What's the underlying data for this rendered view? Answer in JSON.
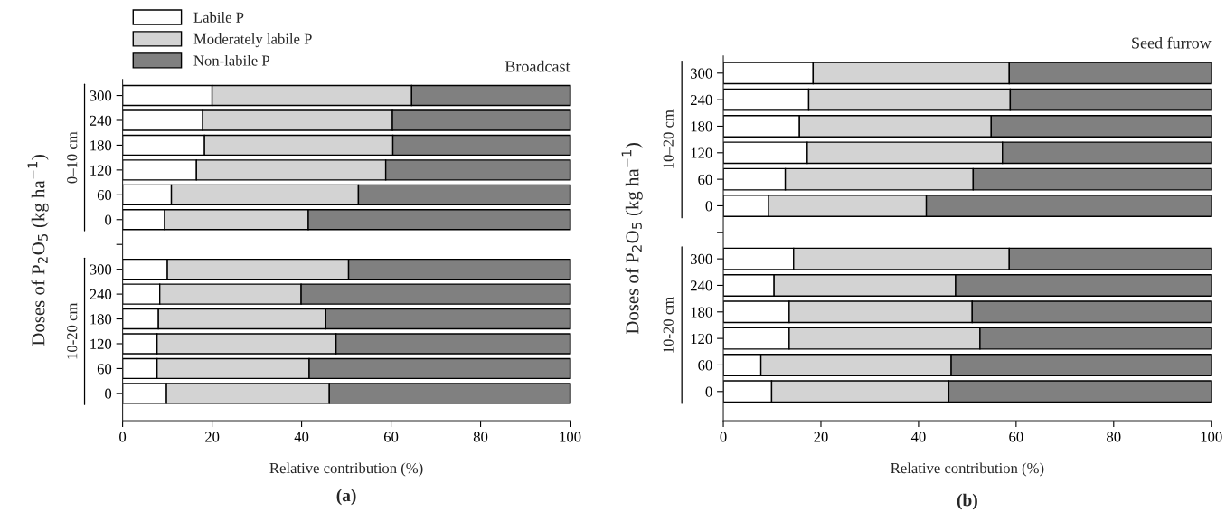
{
  "chart_data": [
    {
      "type": "bar",
      "orientation": "horizontal",
      "stacked": true,
      "title": "Broadcast",
      "xlabel": "Relative contribution (%)",
      "ylabel": "Doses of P$_{2}$O$_{5}$ (kg ha$^{−1}$)",
      "categories": [
        "300",
        "240",
        "180",
        "120",
        "60",
        "0",
        null,
        "300",
        "240",
        "180",
        "120",
        "60",
        "0"
      ],
      "series": [
        {
          "name": "Labile P",
          "color": "#ffffff",
          "values": [
            20.0,
            17.9,
            18.3,
            16.5,
            10.9,
            9.4,
            null,
            10.0,
            8.3,
            8.0,
            7.7,
            7.7,
            9.8
          ]
        },
        {
          "name": "Moderately labile P",
          "color": "#d3d3d3",
          "values": [
            44.6,
            42.4,
            42.1,
            42.3,
            41.8,
            32.1,
            null,
            40.5,
            31.6,
            37.4,
            40.0,
            34.0,
            36.4
          ]
        },
        {
          "name": "Non-labile P",
          "color": "#808080",
          "values": [
            35.4,
            39.7,
            39.6,
            41.2,
            47.3,
            58.5,
            null,
            49.5,
            60.1,
            54.6,
            52.3,
            58.3,
            53.8
          ]
        }
      ],
      "xlim": [
        0,
        100
      ],
      "xticks": [
        0,
        20,
        40,
        60,
        80,
        100
      ],
      "grid": false,
      "legend": "top left",
      "annotations": [
        "0–10 cm",
        "10-20 cm",
        "(a)"
      ]
    },
    {
      "type": "bar",
      "orientation": "horizontal",
      "stacked": true,
      "title": "Seed furrow",
      "xlabel": "Relative contribution (%)",
      "ylabel": "Doses of P$_{2}$O$_{5}$ (kg ha$^{−1}$)",
      "categories": [
        "300",
        "240",
        "180",
        "120",
        "60",
        "0",
        null,
        "300",
        "240",
        "180",
        "120",
        "60",
        "0"
      ],
      "series": [
        {
          "color": "#ffffff",
          "values": [
            18.4,
            17.5,
            15.6,
            17.2,
            12.7,
            9.3,
            null,
            14.4,
            10.4,
            13.5,
            13.5,
            7.7,
            9.9
          ]
        },
        {
          "color": "#d3d3d3",
          "values": [
            40.2,
            41.3,
            39.3,
            40.0,
            38.5,
            32.3,
            null,
            44.2,
            37.2,
            37.5,
            39.1,
            39.0,
            36.3
          ]
        },
        {
          "color": "#808080",
          "values": [
            41.4,
            41.2,
            45.1,
            42.8,
            48.8,
            58.4,
            null,
            41.4,
            52.4,
            49.0,
            47.4,
            53.3,
            53.8
          ]
        }
      ],
      "xlim": [
        0,
        100
      ],
      "xticks": [
        0,
        20,
        40,
        60,
        80,
        100
      ],
      "grid": false,
      "annotations": [
        "10–20 cm",
        "10-20 cm",
        "(b)"
      ]
    }
  ]
}
